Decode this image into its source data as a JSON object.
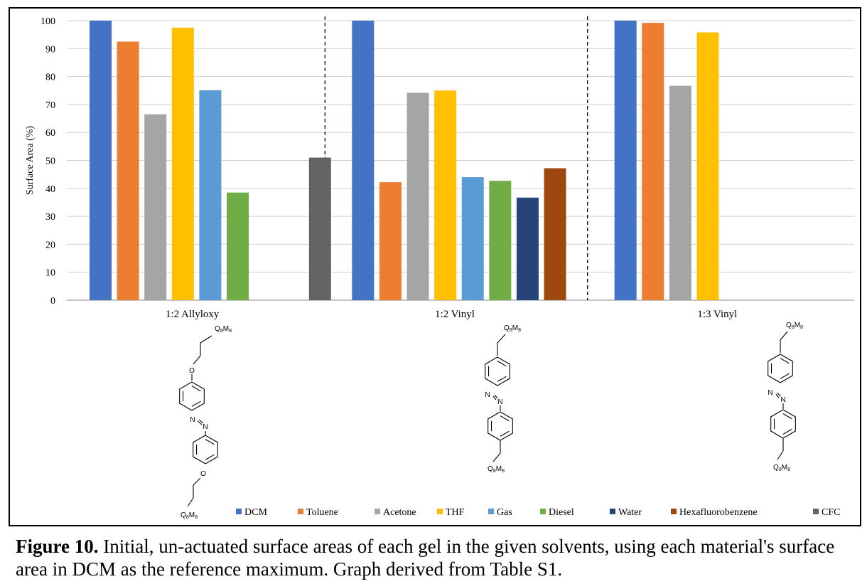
{
  "chart_data": {
    "type": "bar",
    "ylabel": "Surface Area (%)",
    "ylim": [
      0,
      100
    ],
    "yticks": [
      0,
      10,
      20,
      30,
      40,
      50,
      60,
      70,
      80,
      90,
      100
    ],
    "grid": true,
    "legend_position": "bottom",
    "categories": [
      "1:2 Allyloxy",
      "1:2 Vinyl",
      "1:3 Vinyl"
    ],
    "series": [
      {
        "name": "DCM",
        "color": "#4472C4",
        "values": [
          100,
          100,
          100
        ]
      },
      {
        "name": "Toluene",
        "color": "#ED7D31",
        "values": [
          92.5,
          42.2,
          99.2
        ]
      },
      {
        "name": "Acetone",
        "color": "#A5A5A5",
        "values": [
          66.5,
          74.2,
          76.7
        ]
      },
      {
        "name": "THF",
        "color": "#FFC000",
        "values": [
          97.5,
          75,
          95.8
        ]
      },
      {
        "name": "Gas",
        "color": "#5B9BD5",
        "values": [
          75.1,
          44,
          null
        ]
      },
      {
        "name": "Diesel",
        "color": "#70AD47",
        "values": [
          38.5,
          42.7,
          null
        ]
      },
      {
        "name": "Water",
        "color": "#264478",
        "values": [
          null,
          36.7,
          null
        ]
      },
      {
        "name": "Hexafluorobenzene",
        "color": "#9E480E",
        "values": [
          null,
          47.2,
          null
        ]
      },
      {
        "name": "CFC",
        "color": "#636363",
        "values": [
          51,
          null,
          null
        ]
      }
    ]
  },
  "molecules": {
    "allyloxy": {
      "top_label": "Q8M8",
      "bottom_label": "Q8M8",
      "o_label": "O",
      "n_label": "N"
    },
    "vinyl12": {
      "top_label": "Q8M8",
      "bottom_label": "Q8M8",
      "n_label": "N"
    },
    "vinyl13": {
      "top_label": "Q8M8",
      "bottom_label": "Q8M8",
      "n_label": "N"
    }
  },
  "caption": {
    "bold": "Figure 10.",
    "text": " Initial, un-actuated surface areas of each gel in the given solvents, using each material's surface area in DCM as the reference maximum. Graph derived from Table S1."
  }
}
